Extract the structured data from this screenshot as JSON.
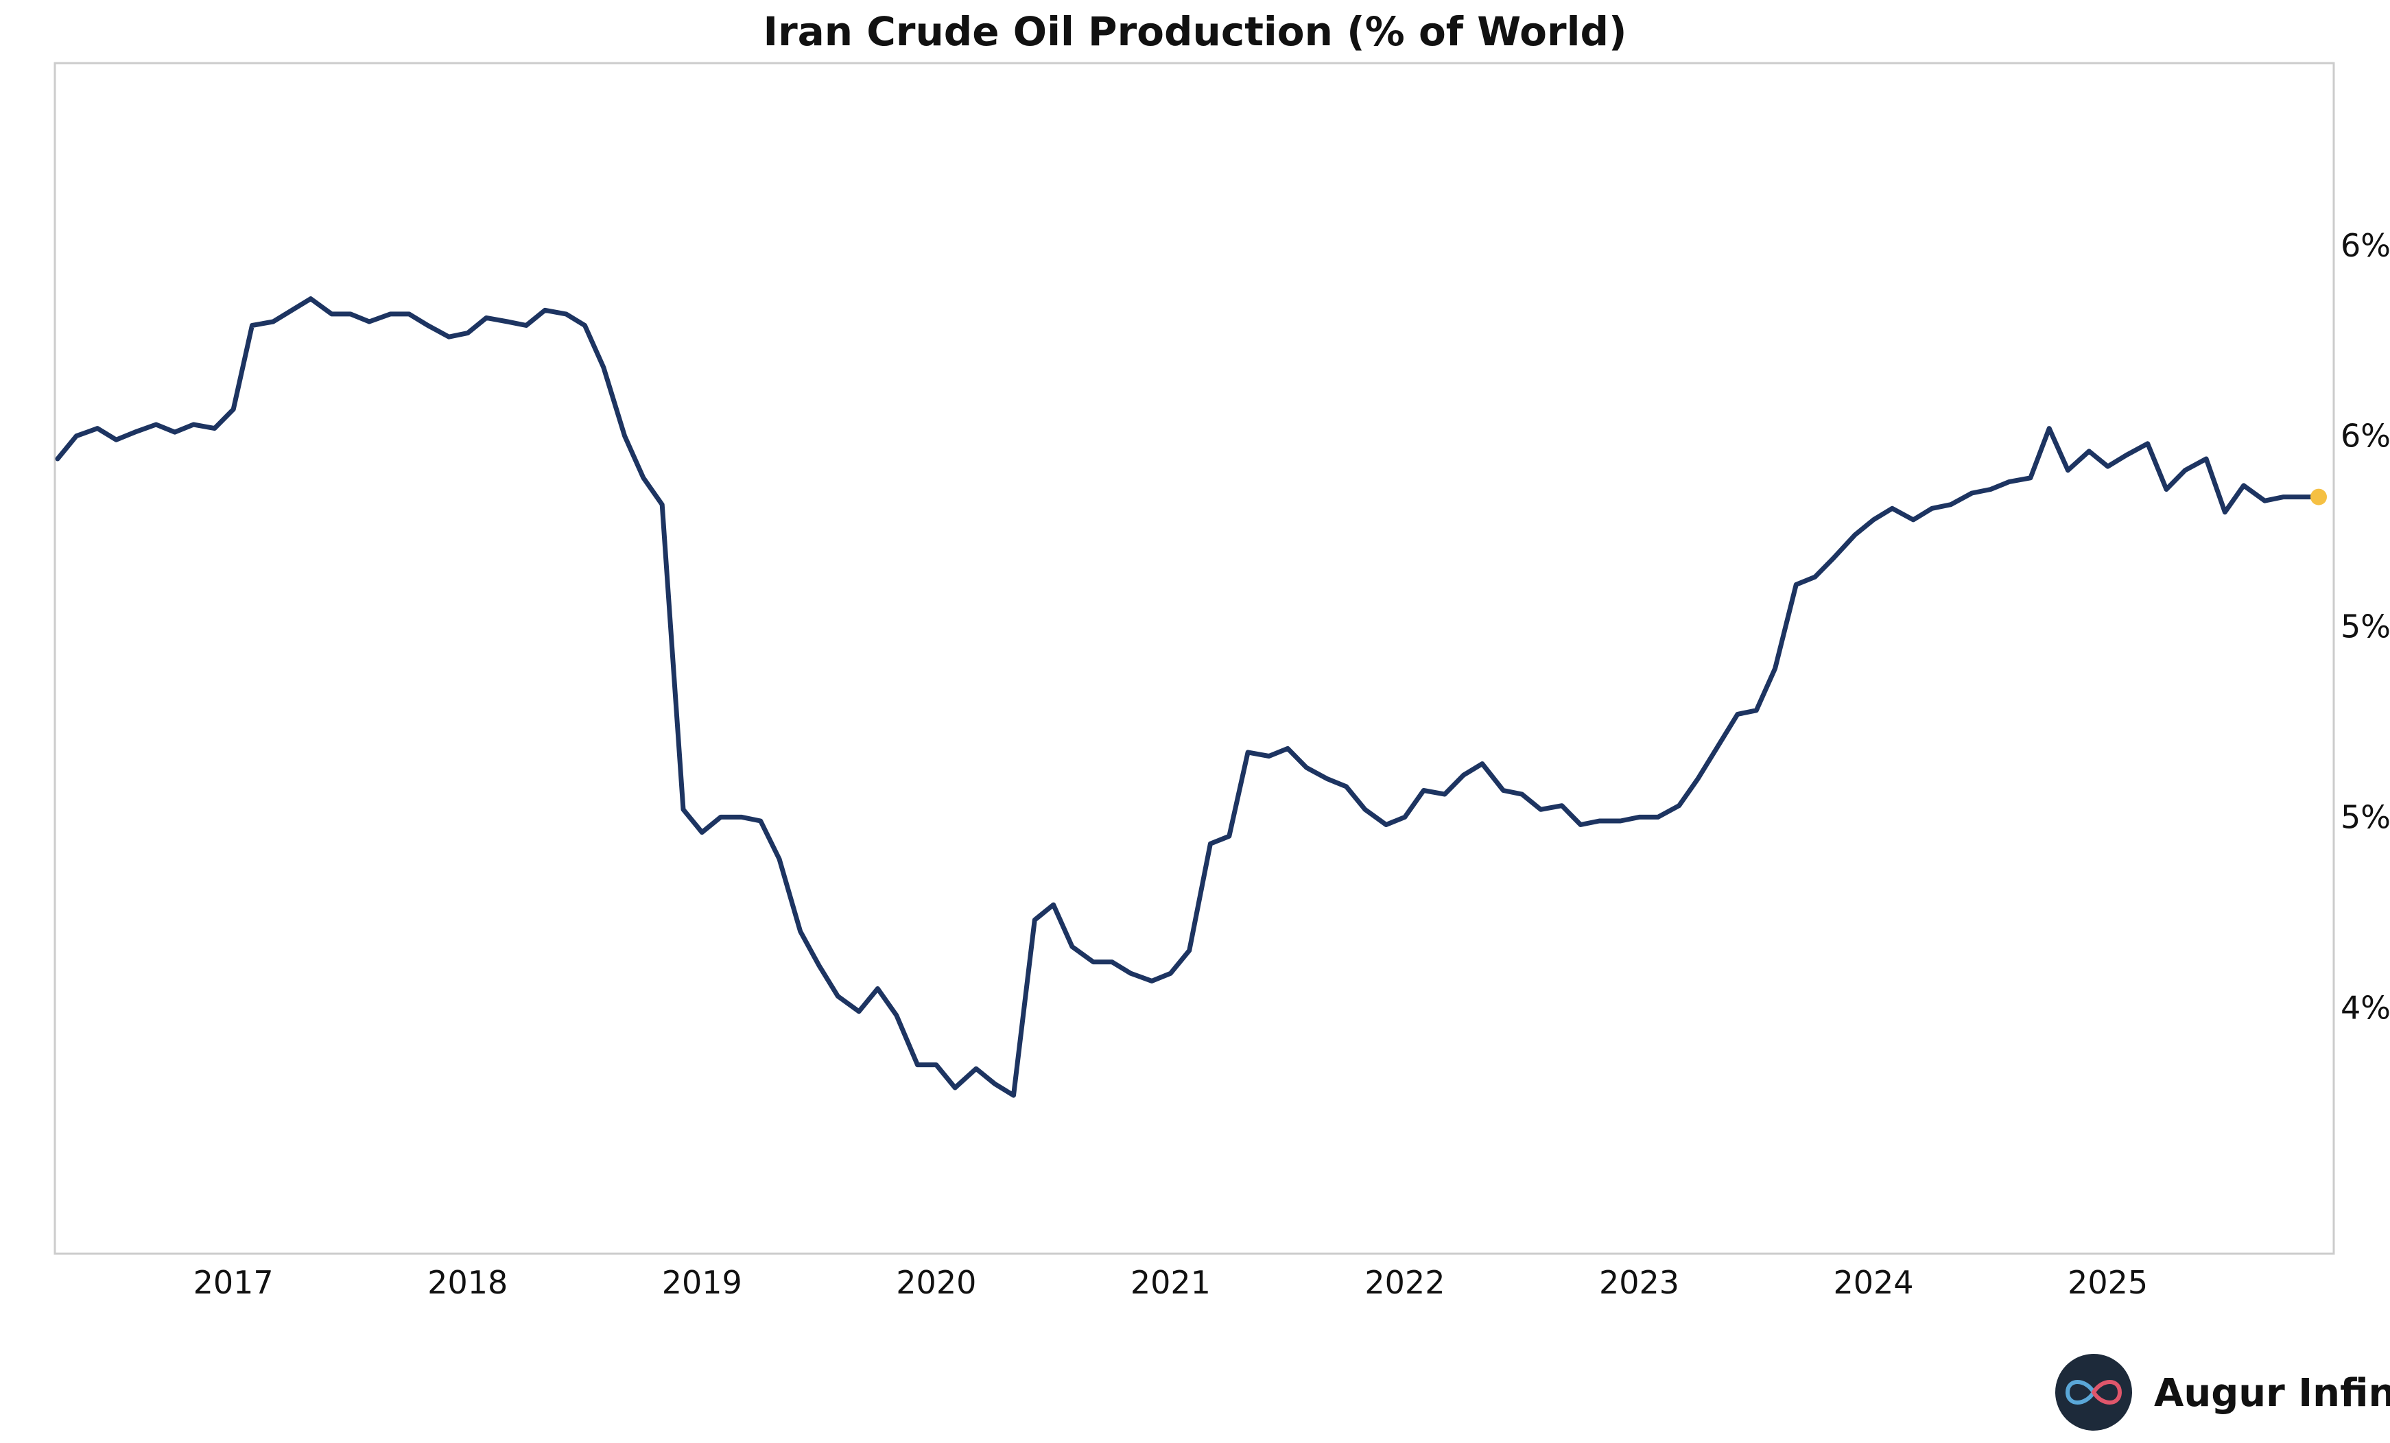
{
  "chart_data": {
    "type": "line",
    "title": "Iran Crude Oil Production (% of World)",
    "xlabel": "",
    "ylabel": "",
    "x_tick_labels": [
      "2017",
      "2018",
      "2019",
      "2020",
      "2021",
      "2022",
      "2023",
      "2024",
      "2025"
    ],
    "x_tick_values": [
      2017,
      2018,
      2019,
      2020,
      2021,
      2022,
      2023,
      2024,
      2025
    ],
    "y_tick_labels": [
      "4%",
      "5%",
      "5%",
      "6%",
      "6%"
    ],
    "y_tick_values": [
      4.0,
      4.5,
      5.0,
      5.5,
      6.0
    ],
    "xlim": [
      2016.25,
      2025.9
    ],
    "ylim": [
      3.52,
      6.32
    ],
    "grid": false,
    "series": [
      {
        "name": "Iran Crude Oil Production (% of World)",
        "color": "#1d3461",
        "x": [
          2016.25,
          2016.33,
          2016.42,
          2016.5,
          2016.58,
          2016.67,
          2016.75,
          2016.83,
          2016.92,
          2017.0,
          2017.08,
          2017.17,
          2017.25,
          2017.33,
          2017.42,
          2017.5,
          2017.58,
          2017.67,
          2017.75,
          2017.83,
          2017.92,
          2018.0,
          2018.08,
          2018.17,
          2018.25,
          2018.33,
          2018.42,
          2018.5,
          2018.58,
          2018.67,
          2018.75,
          2018.83,
          2018.92,
          2019.0,
          2019.08,
          2019.17,
          2019.25,
          2019.33,
          2019.42,
          2019.5,
          2019.58,
          2019.67,
          2019.75,
          2019.83,
          2019.92,
          2020.0,
          2020.08,
          2020.17,
          2020.25,
          2020.33,
          2020.42,
          2020.5,
          2020.58,
          2020.67,
          2020.75,
          2020.83,
          2020.92,
          2021.0,
          2021.08,
          2021.17,
          2021.25,
          2021.33,
          2021.42,
          2021.5,
          2021.58,
          2021.67,
          2021.75,
          2021.83,
          2021.92,
          2022.0,
          2022.08,
          2022.17,
          2022.25,
          2022.33,
          2022.42,
          2022.5,
          2022.58,
          2022.67,
          2022.75,
          2022.83,
          2022.92,
          2023.0,
          2023.08,
          2023.17,
          2023.25,
          2023.33,
          2023.42,
          2023.5,
          2023.58,
          2023.67,
          2023.75,
          2023.83,
          2023.92,
          2024.0,
          2024.08,
          2024.17,
          2024.25,
          2024.33,
          2024.42,
          2024.5,
          2024.58,
          2024.67,
          2024.75,
          2024.83,
          2024.92,
          2025.0,
          2025.08,
          2025.17,
          2025.25,
          2025.33,
          2025.42,
          2025.5,
          2025.58,
          2025.67,
          2025.75,
          2025.83,
          2025.9
        ],
        "values": [
          5.44,
          5.5,
          5.52,
          5.49,
          5.51,
          5.53,
          5.51,
          5.53,
          5.52,
          5.57,
          5.79,
          5.8,
          5.83,
          5.86,
          5.82,
          5.82,
          5.8,
          5.82,
          5.82,
          5.79,
          5.76,
          5.77,
          5.81,
          5.8,
          5.79,
          5.83,
          5.82,
          5.79,
          5.68,
          5.5,
          5.39,
          5.32,
          4.52,
          4.46,
          4.5,
          4.5,
          4.49,
          4.39,
          4.2,
          4.11,
          4.03,
          3.99,
          4.05,
          3.98,
          3.85,
          3.85,
          3.79,
          3.84,
          3.8,
          3.77,
          4.23,
          4.27,
          4.16,
          4.12,
          4.12,
          4.09,
          4.07,
          4.09,
          4.15,
          4.43,
          4.45,
          4.67,
          4.66,
          4.68,
          4.63,
          4.6,
          4.58,
          4.52,
          4.48,
          4.5,
          4.57,
          4.56,
          4.61,
          4.64,
          4.57,
          4.56,
          4.52,
          4.53,
          4.48,
          4.49,
          4.49,
          4.5,
          4.5,
          4.53,
          4.6,
          4.68,
          4.77,
          4.78,
          4.89,
          5.11,
          5.13,
          5.18,
          5.24,
          5.28,
          5.31,
          5.28,
          5.31,
          5.32,
          5.35,
          5.36,
          5.38,
          5.39,
          5.52,
          5.41,
          5.46,
          5.42,
          5.45,
          5.48,
          5.36,
          5.41,
          5.44,
          5.3,
          5.37,
          5.33,
          5.34,
          5.34,
          5.34
        ]
      }
    ],
    "last_point_marker_color": "#f5c043",
    "frame_color": "#cccccc"
  },
  "brand": {
    "name": "Augur Infinity",
    "logo_icon": "infinity-logo-icon",
    "logo_bg_color": "#1d2a3a"
  }
}
